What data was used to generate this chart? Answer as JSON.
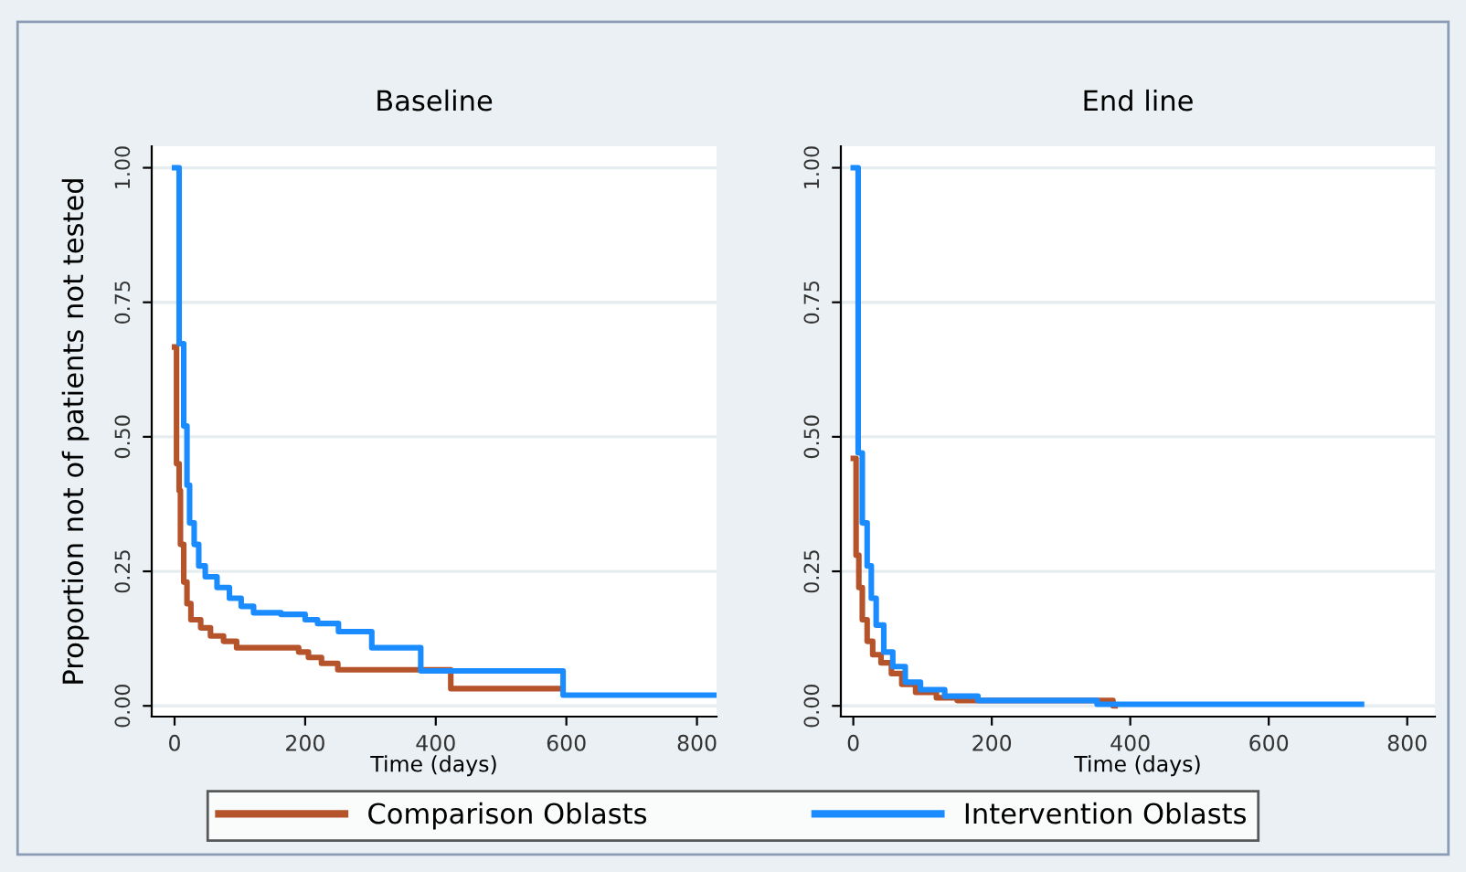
{
  "chart_data": [
    {
      "type": "step",
      "title": "Baseline",
      "xlabel": "Time (days)",
      "ylabel": "Proportion not of patients not tested",
      "xlim": [
        -35,
        830
      ],
      "xticks": [
        0,
        200,
        400,
        600,
        800
      ],
      "ylim": [
        -0.02,
        1.04
      ],
      "yticks": [
        {
          "value": 0,
          "label": "0.00"
        },
        {
          "value": 0.25,
          "label": "0.25"
        },
        {
          "value": 0.5,
          "label": "0.50"
        },
        {
          "value": 0.75,
          "label": "0.75"
        },
        {
          "value": 1,
          "label": "1.00"
        }
      ],
      "grid": "y",
      "legend": "bottom",
      "series": [
        {
          "name": "Comparison Oblasts",
          "color": "#b5532a",
          "x": [
            0,
            3,
            7,
            9,
            14,
            19,
            25,
            40,
            55,
            75,
            95,
            190,
            205,
            225,
            250,
            423,
            590
          ],
          "values": [
            0.667,
            0.45,
            0.4,
            0.3,
            0.23,
            0.19,
            0.16,
            0.145,
            0.13,
            0.12,
            0.108,
            0.1,
            0.09,
            0.079,
            0.067,
            0.032,
            0.032
          ]
        },
        {
          "name": "Intervention Oblasts",
          "color": "#1a8cff",
          "x": [
            0,
            7,
            14,
            19,
            23,
            30,
            37,
            47,
            65,
            84,
            102,
            121,
            163,
            200,
            219,
            251,
            302,
            377,
            595,
            828
          ],
          "values": [
            1.0,
            0.673,
            0.52,
            0.41,
            0.34,
            0.3,
            0.26,
            0.24,
            0.22,
            0.2,
            0.185,
            0.173,
            0.17,
            0.16,
            0.153,
            0.138,
            0.108,
            0.065,
            0.02,
            0.02
          ]
        }
      ]
    },
    {
      "type": "step",
      "title": "End line",
      "xlabel": "Time (days)",
      "xlim": [
        -18,
        840
      ],
      "xticks": [
        0,
        200,
        400,
        600,
        800
      ],
      "ylim": [
        -0.02,
        1.04
      ],
      "yticks": [
        {
          "value": 0,
          "label": "0.00"
        },
        {
          "value": 0.25,
          "label": "0.25"
        },
        {
          "value": 0.5,
          "label": "0.50"
        },
        {
          "value": 0.75,
          "label": "0.75"
        },
        {
          "value": 1,
          "label": "1.00"
        }
      ],
      "grid": "y",
      "series": [
        {
          "color": "#b5532a",
          "x": [
            0,
            4,
            8,
            13,
            20,
            28,
            40,
            55,
            70,
            90,
            120,
            150,
            375,
            378
          ],
          "values": [
            0.46,
            0.28,
            0.22,
            0.16,
            0.12,
            0.095,
            0.08,
            0.06,
            0.04,
            0.025,
            0.015,
            0.01,
            0.0,
            0.0
          ]
        },
        {
          "color": "#1a8cff",
          "x": [
            0,
            7,
            13,
            20,
            26,
            33,
            44,
            57,
            75,
            97,
            132,
            180,
            352,
            734
          ],
          "values": [
            1.0,
            0.47,
            0.34,
            0.26,
            0.2,
            0.15,
            0.1,
            0.073,
            0.044,
            0.03,
            0.018,
            0.01,
            0.003,
            0.003
          ]
        }
      ]
    }
  ]
}
